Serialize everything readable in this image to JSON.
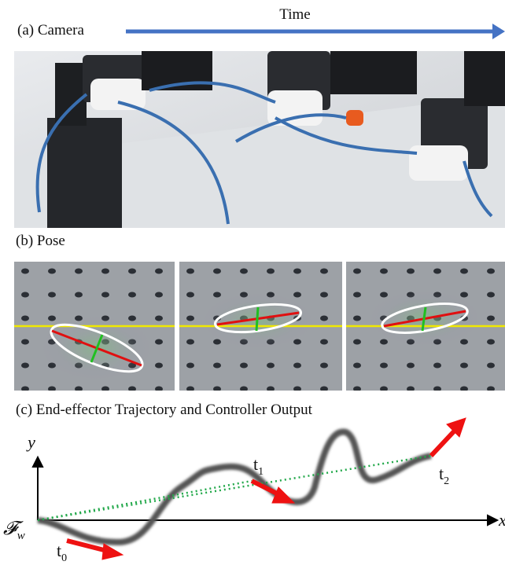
{
  "panels": {
    "a": {
      "label": "(a) Camera",
      "arrow_label": "Time"
    },
    "b": {
      "label": "(b) Pose"
    },
    "c": {
      "label": "(c) End-effector Trajectory and Controller Output",
      "y_axis": "y",
      "x_axis": "x",
      "frame": {
        "base": "𝓕",
        "sub": "w"
      },
      "points": [
        {
          "base": "t",
          "sub": "0"
        },
        {
          "base": "t",
          "sub": "1"
        },
        {
          "base": "t",
          "sub": "2"
        }
      ]
    }
  }
}
